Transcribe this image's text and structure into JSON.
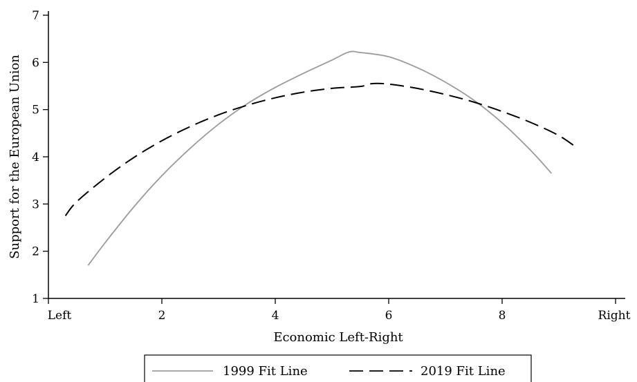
{
  "chart_data": {
    "type": "line",
    "title": "",
    "xlabel": "Economic Left-Right",
    "ylabel": "Support for the European Union",
    "xlim": [
      0,
      10
    ],
    "ylim": [
      1,
      7
    ],
    "x_ticks": [
      {
        "value": 0,
        "label": "Left"
      },
      {
        "value": 2,
        "label": "2"
      },
      {
        "value": 4,
        "label": "4"
      },
      {
        "value": 6,
        "label": "6"
      },
      {
        "value": 8,
        "label": "8"
      },
      {
        "value": 10,
        "label": "Right"
      }
    ],
    "y_ticks": [
      {
        "value": 1,
        "label": "1"
      },
      {
        "value": 2,
        "label": "2"
      },
      {
        "value": 3,
        "label": "3"
      },
      {
        "value": 4,
        "label": "4"
      },
      {
        "value": 5,
        "label": "5"
      },
      {
        "value": 6,
        "label": "6"
      },
      {
        "value": 7,
        "label": "7"
      }
    ],
    "grid": false,
    "legend_position": "bottom",
    "series": [
      {
        "name": "1999 Fit Line",
        "color": "#9b9b9b",
        "dash": "solid",
        "x": [
          0.7,
          1.0,
          1.5,
          2.0,
          2.5,
          3.0,
          3.5,
          4.0,
          4.5,
          5.0,
          5.3,
          5.5,
          6.0,
          6.5,
          7.0,
          7.5,
          8.0,
          8.5,
          8.87
        ],
        "y": [
          1.7,
          2.18,
          2.93,
          3.6,
          4.18,
          4.69,
          5.12,
          5.47,
          5.77,
          6.05,
          6.22,
          6.21,
          6.12,
          5.89,
          5.58,
          5.2,
          4.72,
          4.14,
          3.65
        ]
      },
      {
        "name": "2019 Fit Line",
        "color": "#000000",
        "dash": "dashed",
        "x": [
          0.3,
          0.5,
          1.0,
          1.5,
          2.0,
          2.5,
          3.0,
          3.5,
          4.0,
          4.5,
          5.0,
          5.5,
          5.7,
          6.0,
          6.5,
          7.0,
          7.5,
          8.0,
          8.5,
          9.0,
          9.33
        ],
        "y": [
          2.75,
          3.05,
          3.55,
          3.98,
          4.34,
          4.64,
          4.89,
          5.09,
          5.25,
          5.37,
          5.45,
          5.49,
          5.55,
          5.54,
          5.45,
          5.32,
          5.16,
          4.96,
          4.73,
          4.45,
          4.18
        ]
      }
    ]
  }
}
